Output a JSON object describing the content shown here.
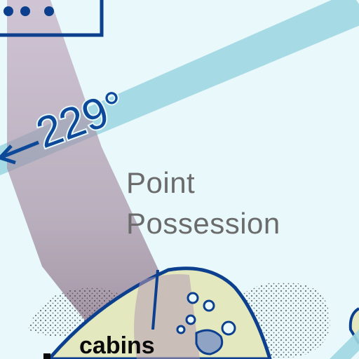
{
  "map": {
    "course_label": "229°",
    "place_name_line1": "Point",
    "place_name_line2": "Possession",
    "feature_label": "cabins",
    "colors": {
      "water": "#e8f8fb",
      "course_line": "#9fd6e1",
      "course_text": "#0c4a99",
      "approach_band": "#b59ab3",
      "shore_line": "#0c3f8e",
      "land_fill": "#e4e8bf",
      "place_text": "#6b6b6b"
    }
  }
}
